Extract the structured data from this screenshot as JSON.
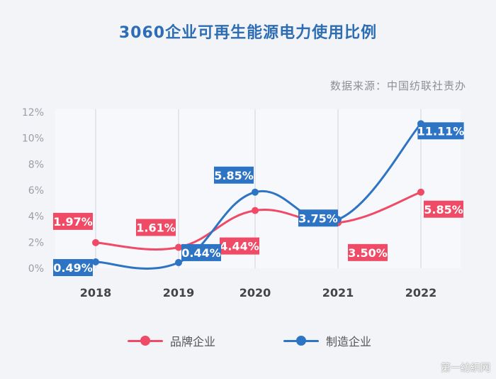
{
  "chart_data": {
    "type": "line",
    "title": "3060企业可再生能源电力使用比例",
    "source_note": "数据来源：中国纺联社责办",
    "categories": [
      "2018",
      "2019",
      "2020",
      "2021",
      "2022"
    ],
    "y_ticks": [
      "0%",
      "2%",
      "4%",
      "6%",
      "8%",
      "10%",
      "12%"
    ],
    "ylim": [
      0,
      12
    ],
    "grid": "vertical",
    "legend_position": "bottom",
    "series": [
      {
        "name": "品牌企业",
        "color": "#ef4b67",
        "values": [
          1.97,
          1.61,
          4.44,
          3.5,
          5.85
        ],
        "labels": [
          "1.97%",
          "1.61%",
          "4.44%",
          "3.50%",
          "5.85%"
        ]
      },
      {
        "name": "制造企业",
        "color": "#2e74c4",
        "values": [
          0.49,
          0.44,
          5.85,
          3.75,
          11.11
        ],
        "labels": [
          "0.49%",
          "0.44%",
          "5.85%",
          "3.75%",
          "11.11%"
        ]
      }
    ]
  },
  "watermark": "第一纺织网"
}
